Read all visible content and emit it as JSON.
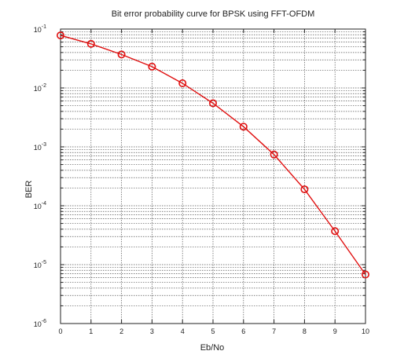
{
  "chart_data": {
    "type": "line",
    "title": "Bit error probability curve for BPSK using FFT-OFDM",
    "xlabel": "Eb/No",
    "ylabel": "BER",
    "x_ticks": [
      "0",
      "1",
      "2",
      "3",
      "4",
      "5",
      "6",
      "7",
      "8",
      "9",
      "10"
    ],
    "y_tick_labels": [
      {
        "exp": -1,
        "base": "10",
        "sup": "-1"
      },
      {
        "exp": -2,
        "base": "10",
        "sup": "-2"
      },
      {
        "exp": -3,
        "base": "10",
        "sup": "-3"
      },
      {
        "exp": -4,
        "base": "10",
        "sup": "-4"
      },
      {
        "exp": -5,
        "base": "10",
        "sup": "-5"
      },
      {
        "exp": -6,
        "base": "10",
        "sup": "-6"
      }
    ],
    "xlim": [
      0,
      10
    ],
    "ylim": [
      1e-06,
      0.1
    ],
    "yscale": "log",
    "grid": true,
    "series": [
      {
        "color": "#e01010",
        "marker": "circle",
        "x": [
          0,
          1,
          2,
          3,
          4,
          5,
          6,
          7,
          8,
          9,
          10
        ],
        "y": [
          0.078,
          0.056,
          0.037,
          0.023,
          0.012,
          0.0055,
          0.0022,
          0.00074,
          0.00019,
          3.7e-05,
          6.8e-06
        ]
      }
    ]
  }
}
